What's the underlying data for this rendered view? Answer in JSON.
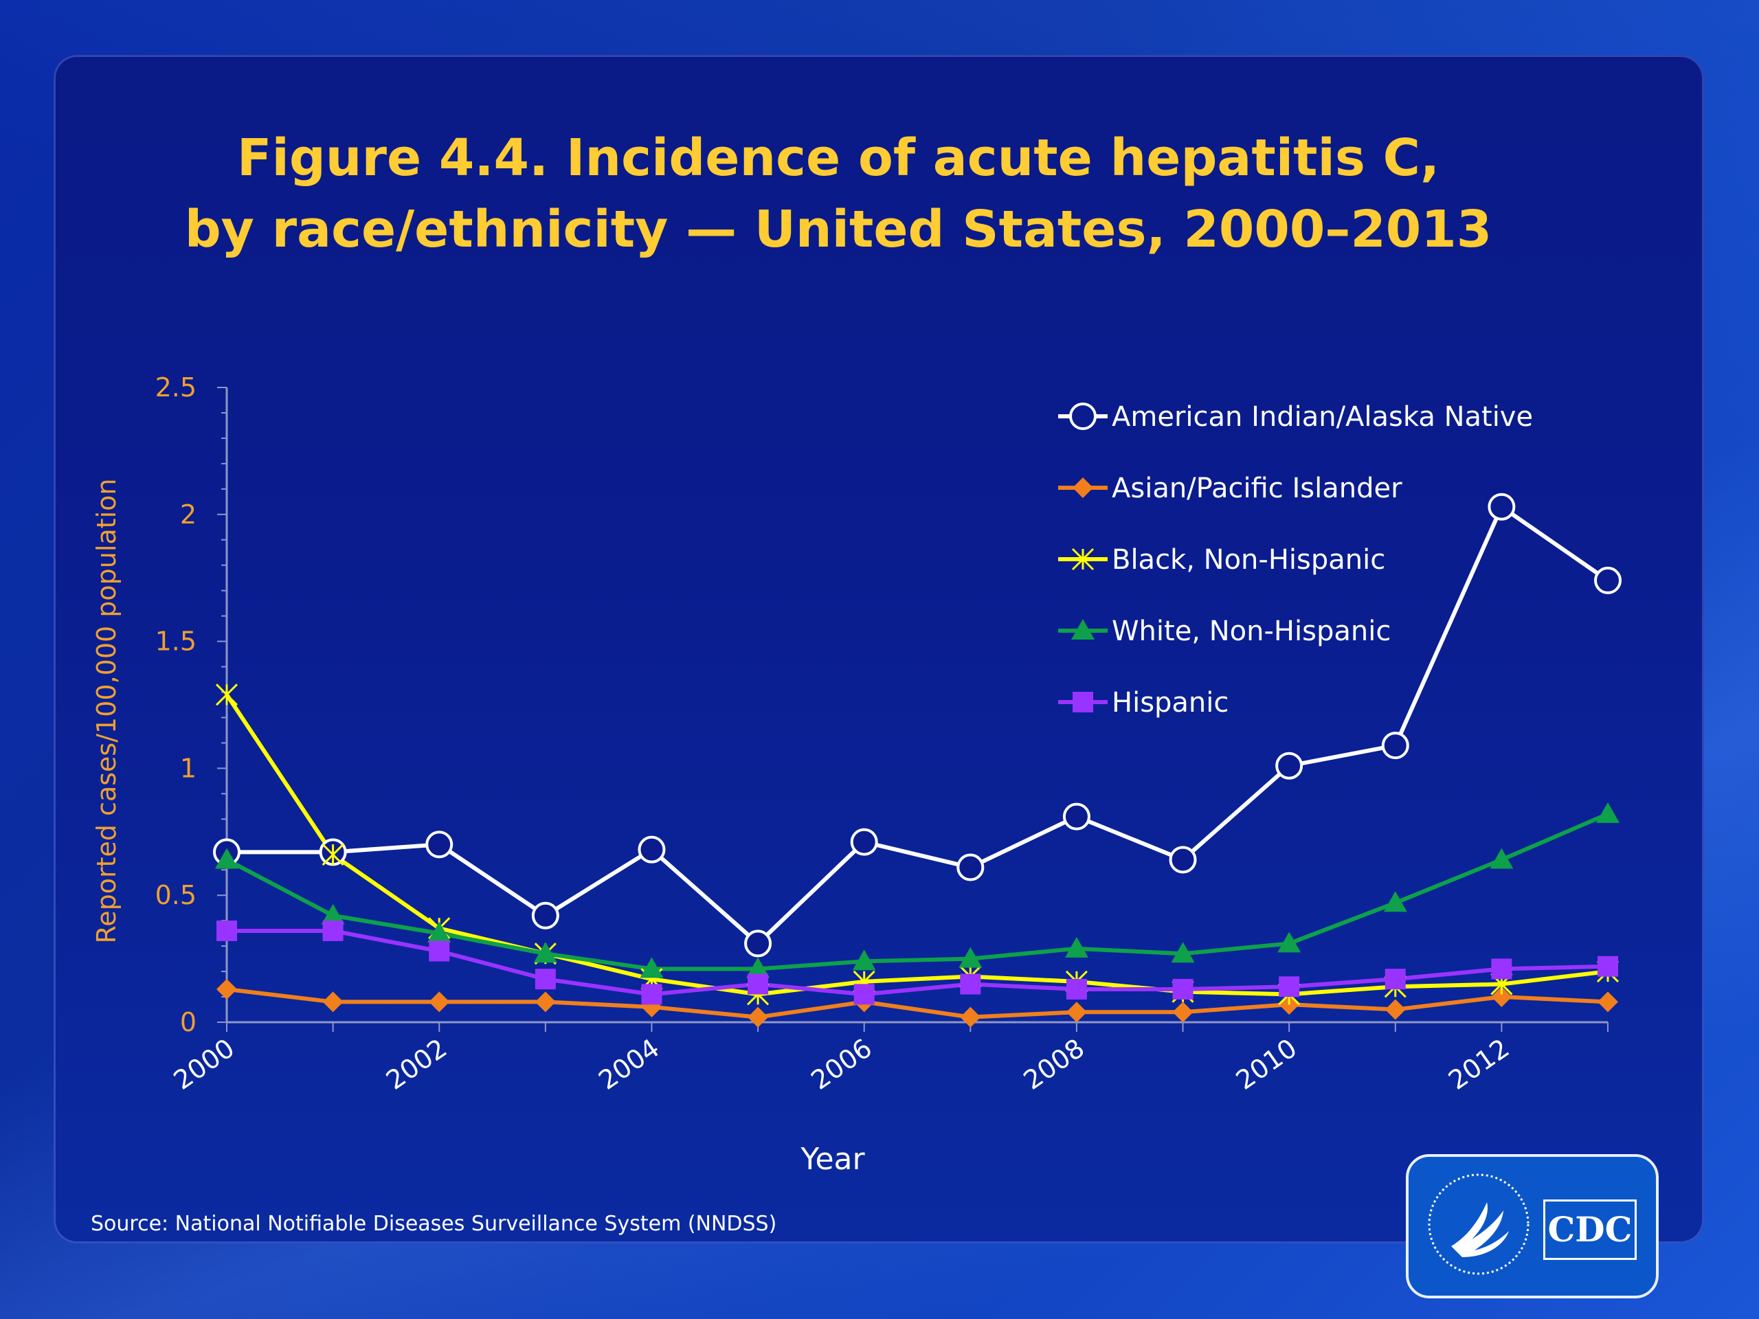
{
  "title_line1": "Figure 4.4. Incidence of acute hepatitis C,",
  "title_line2": "by race/ethnicity — United States, 2000–2013",
  "source": "Source: National Notifiable Diseases Surveillance System (NNDSS)",
  "logo": {
    "cdc_text": "CDC",
    "seal_name": "hhs-seal"
  },
  "colors": {
    "axis_text": "#f0a030",
    "tick_text": "#ffffff",
    "title": "#ffcc33"
  },
  "chart_data": {
    "type": "line",
    "title": "Figure 4.4. Incidence of acute hepatitis C, by race/ethnicity — United States, 2000–2013",
    "xlabel": "Year",
    "ylabel": "Reported cases/100,000 population",
    "x": [
      2000,
      2001,
      2002,
      2003,
      2004,
      2005,
      2006,
      2007,
      2008,
      2009,
      2010,
      2011,
      2012,
      2013
    ],
    "x_tick_labels": [
      "2000",
      "2002",
      "2004",
      "2006",
      "2008",
      "2010",
      "2012"
    ],
    "y_tick_labels": [
      "0",
      "0.5",
      "1",
      "1.5",
      "2",
      "2.5"
    ],
    "ylim": [
      0,
      2.5
    ],
    "grid": false,
    "legend_position": "top-right",
    "series": [
      {
        "name": "American Indian/Alaska Native",
        "color": "#ffffff",
        "marker": "circle",
        "values": [
          0.67,
          0.67,
          0.7,
          0.42,
          0.68,
          0.31,
          0.71,
          0.61,
          0.81,
          0.64,
          1.01,
          1.09,
          2.03,
          1.74
        ]
      },
      {
        "name": "Asian/Pacific Islander",
        "color": "#f07f1c",
        "marker": "diamond",
        "values": [
          0.13,
          0.08,
          0.08,
          0.08,
          0.06,
          0.02,
          0.08,
          0.02,
          0.04,
          0.04,
          0.07,
          0.05,
          0.1,
          0.08
        ]
      },
      {
        "name": "Black, Non-Hispanic",
        "color": "#ffff00",
        "marker": "star",
        "values": [
          1.29,
          0.66,
          0.37,
          0.27,
          0.17,
          0.11,
          0.16,
          0.18,
          0.16,
          0.12,
          0.11,
          0.14,
          0.15,
          0.2
        ]
      },
      {
        "name": "White, Non-Hispanic",
        "color": "#0ea04a",
        "marker": "triangle",
        "values": [
          0.64,
          0.42,
          0.35,
          0.27,
          0.21,
          0.21,
          0.24,
          0.25,
          0.29,
          0.27,
          0.31,
          0.47,
          0.64,
          0.82
        ]
      },
      {
        "name": "Hispanic",
        "color": "#9933ff",
        "marker": "square",
        "values": [
          0.36,
          0.36,
          0.28,
          0.17,
          0.11,
          0.15,
          0.11,
          0.15,
          0.13,
          0.13,
          0.14,
          0.17,
          0.21,
          0.22
        ]
      }
    ]
  }
}
